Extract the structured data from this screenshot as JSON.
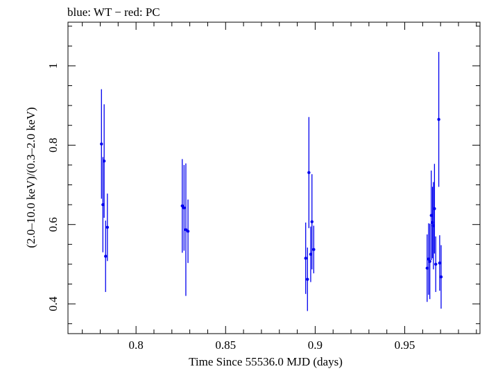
{
  "chart_data": {
    "type": "scatter",
    "title": "blue: WT − red: PC",
    "xlabel": "Time Since 55536.0 MJD (days)",
    "ylabel": "(2.0–10.0 keV)/(0.3–2.0 keV)",
    "xlim": [
      0.762,
      0.992
    ],
    "ylim": [
      0.325,
      1.11
    ],
    "x_ticks": [
      {
        "value": 0.8,
        "label": "0.8"
      },
      {
        "value": 0.85,
        "label": "0.85"
      },
      {
        "value": 0.9,
        "label": "0.9"
      },
      {
        "value": 0.95,
        "label": "0.95"
      }
    ],
    "y_ticks": [
      {
        "value": 0.4,
        "label": "0.4"
      },
      {
        "value": 0.6,
        "label": "0.6"
      },
      {
        "value": 0.8,
        "label": "0.8"
      },
      {
        "value": 1.0,
        "label": "1"
      }
    ],
    "series": [
      {
        "name": "WT",
        "color": "#0000ee",
        "points": [
          {
            "x": 0.7807,
            "y": 0.803,
            "err": 0.138
          },
          {
            "x": 0.7815,
            "y": 0.65,
            "err": 0.12
          },
          {
            "x": 0.7822,
            "y": 0.76,
            "err": 0.143
          },
          {
            "x": 0.783,
            "y": 0.52,
            "err": 0.09
          },
          {
            "x": 0.784,
            "y": 0.593,
            "err": 0.085
          },
          {
            "x": 0.8258,
            "y": 0.647,
            "err": 0.118
          },
          {
            "x": 0.8268,
            "y": 0.642,
            "err": 0.108
          },
          {
            "x": 0.8278,
            "y": 0.587,
            "err": 0.167
          },
          {
            "x": 0.829,
            "y": 0.583,
            "err": 0.08
          },
          {
            "x": 0.8947,
            "y": 0.515,
            "err": 0.09
          },
          {
            "x": 0.8957,
            "y": 0.462,
            "err": 0.08
          },
          {
            "x": 0.8965,
            "y": 0.731,
            "err": 0.14
          },
          {
            "x": 0.8975,
            "y": 0.525,
            "err": 0.07
          },
          {
            "x": 0.8982,
            "y": 0.607,
            "err": 0.12
          },
          {
            "x": 0.8992,
            "y": 0.537,
            "err": 0.06
          },
          {
            "x": 0.9625,
            "y": 0.49,
            "err": 0.085
          },
          {
            "x": 0.9633,
            "y": 0.513,
            "err": 0.09
          },
          {
            "x": 0.964,
            "y": 0.507,
            "err": 0.095
          },
          {
            "x": 0.9648,
            "y": 0.623,
            "err": 0.113
          },
          {
            "x": 0.9655,
            "y": 0.605,
            "err": 0.09
          },
          {
            "x": 0.966,
            "y": 0.597,
            "err": 0.11
          },
          {
            "x": 0.9666,
            "y": 0.64,
            "err": 0.113
          },
          {
            "x": 0.9673,
            "y": 0.5,
            "err": 0.07
          },
          {
            "x": 0.969,
            "y": 0.865,
            "err": 0.17
          },
          {
            "x": 0.9695,
            "y": 0.503,
            "err": 0.07
          },
          {
            "x": 0.9703,
            "y": 0.468,
            "err": 0.08
          }
        ]
      }
    ]
  }
}
